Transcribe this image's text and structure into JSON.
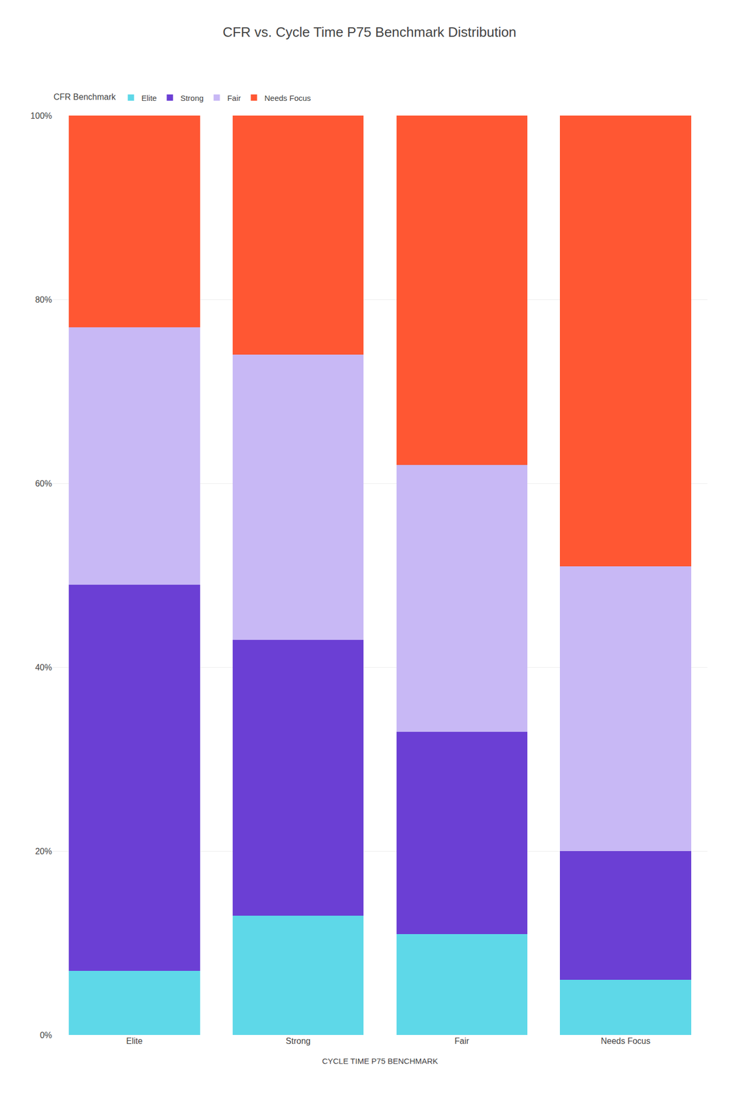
{
  "chart_data": {
    "type": "bar",
    "stacked": true,
    "title": "CFR vs. Cycle Time P75 Benchmark Distribution",
    "xlabel": "CYCLE TIME P75 BENCHMARK",
    "legend_title": "CFR Benchmark",
    "legend": "top left",
    "grid": true,
    "categories": [
      "Elite",
      "Strong",
      "Fair",
      "Needs Focus"
    ],
    "series": [
      {
        "name": "Elite",
        "color": "#5ED8E8",
        "values": [
          7,
          13,
          11,
          6
        ]
      },
      {
        "name": "Strong",
        "color": "#6B3FD4",
        "values": [
          42,
          30,
          22,
          14
        ]
      },
      {
        "name": "Fair",
        "color": "#C8B8F5",
        "values": [
          28,
          31,
          29,
          31
        ]
      },
      {
        "name": "Needs Focus",
        "color": "#FF5733",
        "values": [
          23,
          26,
          38,
          49
        ]
      }
    ],
    "ylim": [
      0,
      100
    ],
    "yticks": [
      {
        "value": 0,
        "label": "0%"
      },
      {
        "value": 20,
        "label": "20%"
      },
      {
        "value": 40,
        "label": "40%"
      },
      {
        "value": 60,
        "label": "60%"
      },
      {
        "value": 80,
        "label": "80%"
      },
      {
        "value": 100,
        "label": "100%"
      }
    ]
  }
}
